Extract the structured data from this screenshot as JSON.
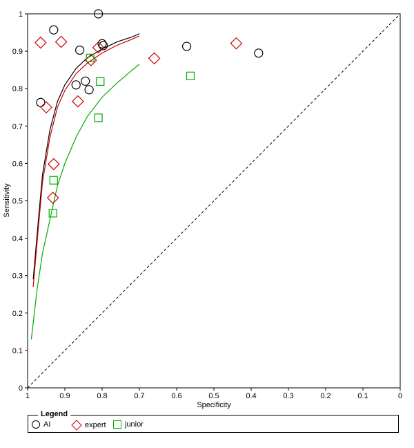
{
  "chart_data": {
    "type": "scatter",
    "xlabel": "Specificity",
    "ylabel": "Sensitivity",
    "xlim": [
      1,
      0
    ],
    "ylim": [
      0,
      1
    ],
    "x_ticks": [
      "1",
      "0.9",
      "0.8",
      "0.7",
      "0.6",
      "0.5",
      "0.4",
      "0.3",
      "0.2",
      "0.1",
      "0"
    ],
    "y_ticks": [
      "0",
      "0.1",
      "0.2",
      "0.3",
      "0.4",
      "0.5",
      "0.6",
      "0.7",
      "0.8",
      "0.9",
      "1"
    ],
    "grid": false,
    "reference_line": "dashed diagonal",
    "series": [
      {
        "name": "AI",
        "marker": "circle",
        "color": "#000000",
        "points": [
          [
            0.81,
            1.0
          ],
          [
            0.93,
            0.957
          ],
          [
            0.8,
            0.92
          ],
          [
            0.797,
            0.915
          ],
          [
            0.86,
            0.903
          ],
          [
            0.573,
            0.913
          ],
          [
            0.38,
            0.895
          ],
          [
            0.845,
            0.82
          ],
          [
            0.87,
            0.81
          ],
          [
            0.835,
            0.797
          ],
          [
            0.965,
            0.763
          ]
        ],
        "curve": [
          [
            0.985,
            0.29
          ],
          [
            0.97,
            0.46
          ],
          [
            0.96,
            0.57
          ],
          [
            0.94,
            0.69
          ],
          [
            0.92,
            0.765
          ],
          [
            0.9,
            0.81
          ],
          [
            0.87,
            0.854
          ],
          [
            0.84,
            0.882
          ],
          [
            0.8,
            0.906
          ],
          [
            0.76,
            0.925
          ],
          [
            0.72,
            0.938
          ],
          [
            0.7,
            0.947
          ]
        ]
      },
      {
        "name": "expert",
        "marker": "diamond",
        "color": "#cc0000",
        "points": [
          [
            0.965,
            0.923
          ],
          [
            0.91,
            0.925
          ],
          [
            0.44,
            0.921
          ],
          [
            0.66,
            0.881
          ],
          [
            0.81,
            0.91
          ],
          [
            0.83,
            0.876
          ],
          [
            0.865,
            0.766
          ],
          [
            0.95,
            0.75
          ],
          [
            0.93,
            0.598
          ],
          [
            0.932,
            0.508
          ]
        ],
        "curve": [
          [
            0.985,
            0.27
          ],
          [
            0.97,
            0.44
          ],
          [
            0.96,
            0.55
          ],
          [
            0.94,
            0.67
          ],
          [
            0.92,
            0.75
          ],
          [
            0.9,
            0.795
          ],
          [
            0.87,
            0.84
          ],
          [
            0.84,
            0.868
          ],
          [
            0.8,
            0.895
          ],
          [
            0.76,
            0.916
          ],
          [
            0.72,
            0.932
          ],
          [
            0.7,
            0.941
          ]
        ]
      },
      {
        "name": "junior",
        "marker": "square",
        "color": "#00aa00",
        "points": [
          [
            0.832,
            0.882
          ],
          [
            0.805,
            0.819
          ],
          [
            0.563,
            0.834
          ],
          [
            0.81,
            0.722
          ],
          [
            0.93,
            0.555
          ],
          [
            0.932,
            0.467
          ]
        ],
        "curve": [
          [
            0.99,
            0.13
          ],
          [
            0.975,
            0.26
          ],
          [
            0.96,
            0.36
          ],
          [
            0.94,
            0.45
          ],
          [
            0.92,
            0.54
          ],
          [
            0.9,
            0.6
          ],
          [
            0.87,
            0.67
          ],
          [
            0.84,
            0.725
          ],
          [
            0.8,
            0.777
          ],
          [
            0.76,
            0.815
          ],
          [
            0.72,
            0.849
          ],
          [
            0.7,
            0.865
          ]
        ]
      }
    ],
    "legend": {
      "title": "Legend",
      "position": "bottom",
      "items": [
        "AI",
        "expert",
        "junior"
      ]
    }
  }
}
